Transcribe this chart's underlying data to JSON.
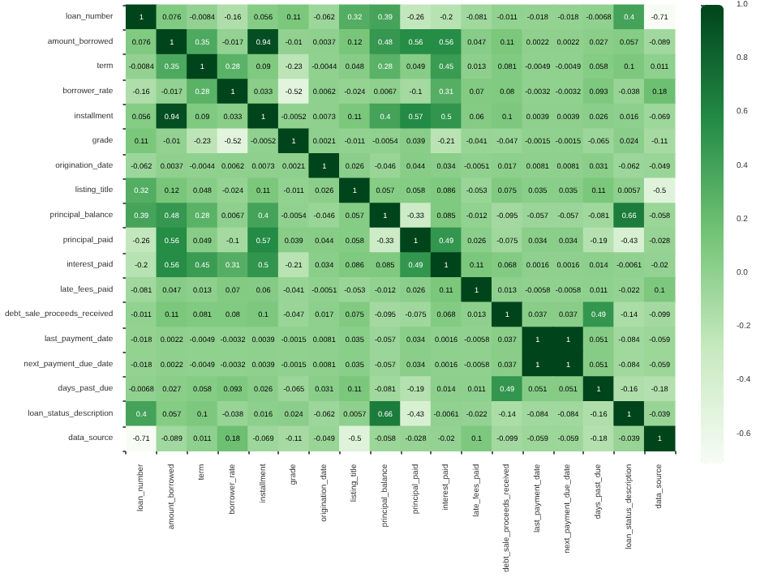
{
  "chart_data": {
    "type": "heatmap",
    "categories": [
      "loan_number",
      "amount_borrowed",
      "term",
      "borrower_rate",
      "installment",
      "grade",
      "origination_date",
      "listing_title",
      "principal_balance",
      "principal_paid",
      "interest_paid",
      "late_fees_paid",
      "debt_sale_proceeds_received",
      "last_payment_date",
      "next_payment_due_date",
      "days_past_due",
      "loan_status_description",
      "data_source"
    ],
    "y_categories": [
      "loan_number",
      "amount_borrowed",
      "term",
      "borrower_rate",
      "installment",
      "grade",
      "origination_date",
      "listing_title",
      "principal_balance",
      "principal_paid",
      "interest_paid",
      "late_fees_paid",
      "debt_sale_proceeds_received",
      "last_payment_date",
      "next_payment_due_date",
      "days_past_due",
      "loan_status_description",
      "data_source"
    ],
    "cells": [
      [
        1,
        0.076,
        -0.0084,
        -0.16,
        0.056,
        0.11,
        -0.062,
        0.32,
        0.39,
        -0.26,
        -0.2,
        -0.081,
        -0.011,
        -0.018,
        -0.018,
        -0.0068,
        0.4,
        -0.71
      ],
      [
        0.076,
        1,
        0.35,
        -0.017,
        0.94,
        -0.01,
        0.0037,
        0.12,
        0.48,
        0.56,
        0.56,
        0.047,
        0.11,
        0.0022,
        0.0022,
        0.027,
        0.057,
        -0.089
      ],
      [
        -0.0084,
        0.35,
        1,
        0.28,
        0.09,
        -0.23,
        -0.0044,
        0.048,
        0.28,
        0.049,
        0.45,
        0.013,
        0.081,
        -0.0049,
        -0.0049,
        0.058,
        0.1,
        0.011
      ],
      [
        -0.16,
        -0.017,
        0.28,
        1,
        0.033,
        -0.52,
        0.0062,
        -0.024,
        0.0067,
        -0.1,
        0.31,
        0.07,
        0.08,
        -0.0032,
        -0.0032,
        0.093,
        -0.038,
        0.18
      ],
      [
        0.056,
        0.94,
        0.09,
        0.033,
        1,
        -0.0052,
        0.0073,
        0.11,
        0.4,
        0.57,
        0.5,
        0.06,
        0.1,
        0.0039,
        0.0039,
        0.026,
        0.016,
        -0.069
      ],
      [
        0.11,
        -0.01,
        -0.23,
        -0.52,
        -0.0052,
        1,
        0.0021,
        -0.011,
        -0.0054,
        0.039,
        -0.21,
        -0.041,
        -0.047,
        -0.0015,
        -0.0015,
        -0.065,
        0.024,
        -0.11
      ],
      [
        -0.062,
        0.0037,
        -0.0044,
        0.0062,
        0.0073,
        0.0021,
        1,
        0.026,
        -0.046,
        0.044,
        0.034,
        -0.0051,
        0.017,
        0.0081,
        0.0081,
        0.031,
        -0.062,
        -0.049
      ],
      [
        0.32,
        0.12,
        0.048,
        -0.024,
        0.11,
        -0.011,
        0.026,
        1,
        0.057,
        0.058,
        0.086,
        -0.053,
        0.075,
        0.035,
        0.035,
        0.11,
        0.0057,
        -0.5
      ],
      [
        0.39,
        0.48,
        0.28,
        0.0067,
        0.4,
        -0.0054,
        -0.046,
        0.057,
        1,
        -0.33,
        0.085,
        -0.012,
        -0.095,
        -0.057,
        -0.057,
        -0.081,
        0.66,
        -0.058
      ],
      [
        -0.26,
        0.56,
        0.049,
        -0.1,
        0.57,
        0.039,
        0.044,
        0.058,
        -0.33,
        1,
        0.49,
        0.026,
        -0.075,
        0.034,
        0.034,
        -0.19,
        -0.43,
        -0.028
      ],
      [
        -0.2,
        0.56,
        0.45,
        0.31,
        0.5,
        -0.21,
        0.034,
        0.086,
        0.085,
        0.49,
        1,
        0.11,
        0.068,
        0.0016,
        0.0016,
        0.014,
        -0.0061,
        -0.02
      ],
      [
        -0.081,
        0.047,
        0.013,
        0.07,
        0.06,
        -0.041,
        -0.0051,
        -0.053,
        -0.012,
        0.026,
        0.11,
        1,
        0.013,
        -0.0058,
        -0.0058,
        0.011,
        -0.022,
        0.1
      ],
      [
        -0.011,
        0.11,
        0.081,
        0.08,
        0.1,
        -0.047,
        0.017,
        0.075,
        -0.095,
        -0.075,
        0.068,
        0.013,
        1,
        0.037,
        0.037,
        0.49,
        -0.14,
        -0.099
      ],
      [
        -0.018,
        0.0022,
        -0.0049,
        -0.0032,
        0.0039,
        -0.0015,
        0.0081,
        0.035,
        -0.057,
        0.034,
        0.0016,
        -0.0058,
        0.037,
        1,
        1,
        0.051,
        -0.084,
        -0.059
      ],
      [
        -0.018,
        0.0022,
        -0.0049,
        -0.0032,
        0.0039,
        -0.0015,
        0.0081,
        0.035,
        -0.057,
        0.034,
        0.0016,
        -0.0058,
        0.037,
        1,
        1,
        0.051,
        -0.084,
        -0.059
      ],
      [
        -0.0068,
        0.027,
        0.058,
        0.093,
        0.026,
        -0.065,
        0.031,
        0.11,
        -0.081,
        -0.19,
        0.014,
        0.011,
        0.49,
        0.051,
        0.051,
        1,
        -0.16,
        -0.18
      ],
      [
        0.4,
        0.057,
        0.1,
        -0.038,
        0.016,
        0.024,
        -0.062,
        0.0057,
        0.66,
        -0.43,
        -0.0061,
        -0.022,
        -0.14,
        -0.084,
        -0.084,
        -0.16,
        1,
        -0.039
      ],
      [
        -0.71,
        -0.089,
        0.011,
        0.18,
        -0.069,
        -0.11,
        -0.049,
        -0.5,
        -0.058,
        -0.028,
        -0.02,
        0.1,
        -0.099,
        -0.059,
        -0.059,
        -0.18,
        -0.039,
        1
      ]
    ],
    "clim": [
      -0.71,
      1
    ],
    "cticks": [
      {
        "value": 1,
        "label": "1.0"
      },
      {
        "value": 0.8,
        "label": "0.8"
      },
      {
        "value": 0.6,
        "label": "0.6"
      },
      {
        "value": 0.4,
        "label": "0.4"
      },
      {
        "value": 0.2,
        "label": "0.2"
      },
      {
        "value": 0,
        "label": "0.0"
      },
      {
        "value": -0.2,
        "label": "-0.2"
      },
      {
        "value": -0.4,
        "label": "-0.4"
      },
      {
        "value": -0.6,
        "label": "-0.6"
      }
    ],
    "data_labels": true
  }
}
